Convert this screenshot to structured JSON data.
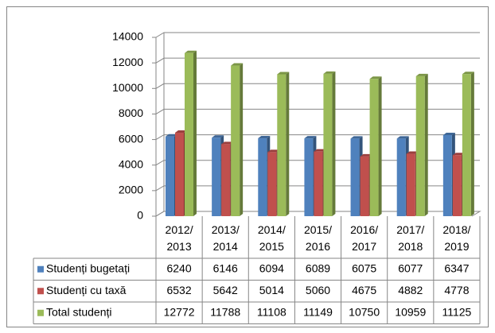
{
  "chart_data": {
    "type": "bar3d",
    "categories": [
      "2012/2013",
      "2013/2014",
      "2014/2015",
      "2015/2016",
      "2016/2017",
      "2017/2018",
      "2018/2019"
    ],
    "series": [
      {
        "name": "Studenți bugetați",
        "color": "#4f81bd",
        "values": [
          6240,
          6146,
          6094,
          6089,
          6075,
          6077,
          6347
        ]
      },
      {
        "name": "Studenți cu taxă",
        "color": "#c0504d",
        "values": [
          6532,
          5642,
          5014,
          5060,
          4675,
          4882,
          4778
        ]
      },
      {
        "name": "Total studenți",
        "color": "#9bbb59",
        "values": [
          12772,
          11788,
          11108,
          11149,
          10750,
          10959,
          11125
        ]
      }
    ],
    "ylim": [
      0,
      14000
    ],
    "yticks": [
      0,
      2000,
      4000,
      6000,
      8000,
      10000,
      12000,
      14000
    ],
    "grid": true,
    "data_table": true
  }
}
